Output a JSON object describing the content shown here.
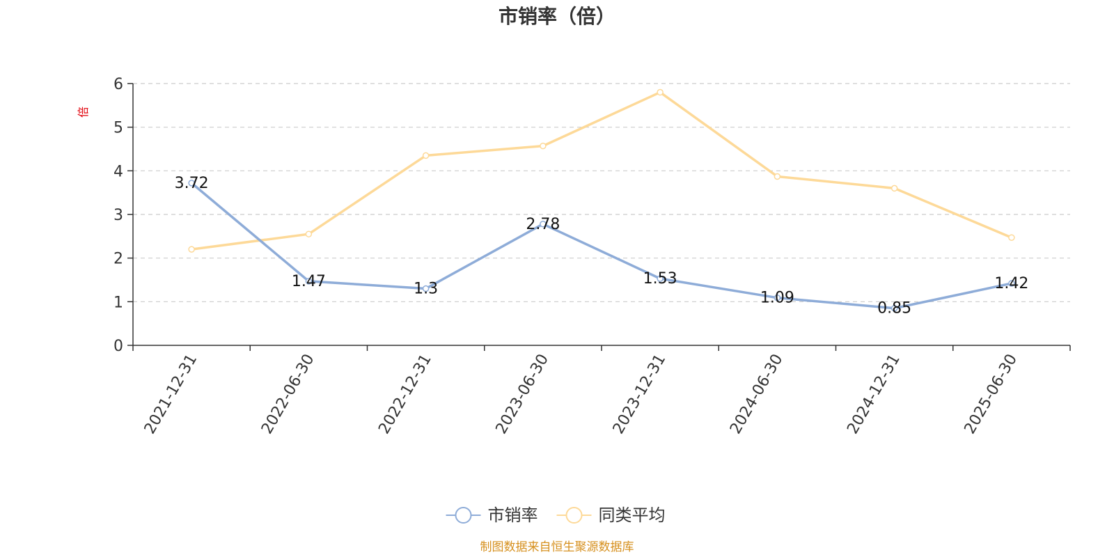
{
  "chart_data": {
    "type": "line",
    "title": "市销率（倍）",
    "ylabel": "倍",
    "xlabel": "",
    "categories": [
      "2021-12-31",
      "2022-06-30",
      "2022-12-31",
      "2023-06-30",
      "2023-12-31",
      "2024-06-30",
      "2024-12-31",
      "2025-06-30"
    ],
    "ylim": [
      0,
      6
    ],
    "yticks": [
      0,
      1,
      2,
      3,
      4,
      5,
      6
    ],
    "grid": true,
    "legend_position": "bottom-center",
    "series": [
      {
        "name": "市销率",
        "color": "#8eacd8",
        "values": [
          3.72,
          1.47,
          1.3,
          2.78,
          1.53,
          1.09,
          0.85,
          1.42
        ],
        "data_labels": [
          "3.72",
          "1.47",
          "1.3",
          "2.78",
          "1.53",
          "1.09",
          "0.85",
          "1.42"
        ],
        "show_labels": true
      },
      {
        "name": "同类平均",
        "color": "#fdd998",
        "values": [
          2.2,
          2.55,
          4.35,
          4.57,
          5.8,
          3.87,
          3.6,
          2.47
        ],
        "show_labels": false
      }
    ]
  },
  "source_note": "制图数据来自恒生聚源数据库",
  "colors": {
    "axis": "#333333",
    "grid": "#cccccc",
    "unit_label": "#e1000a",
    "source_note": "#d6901e"
  }
}
